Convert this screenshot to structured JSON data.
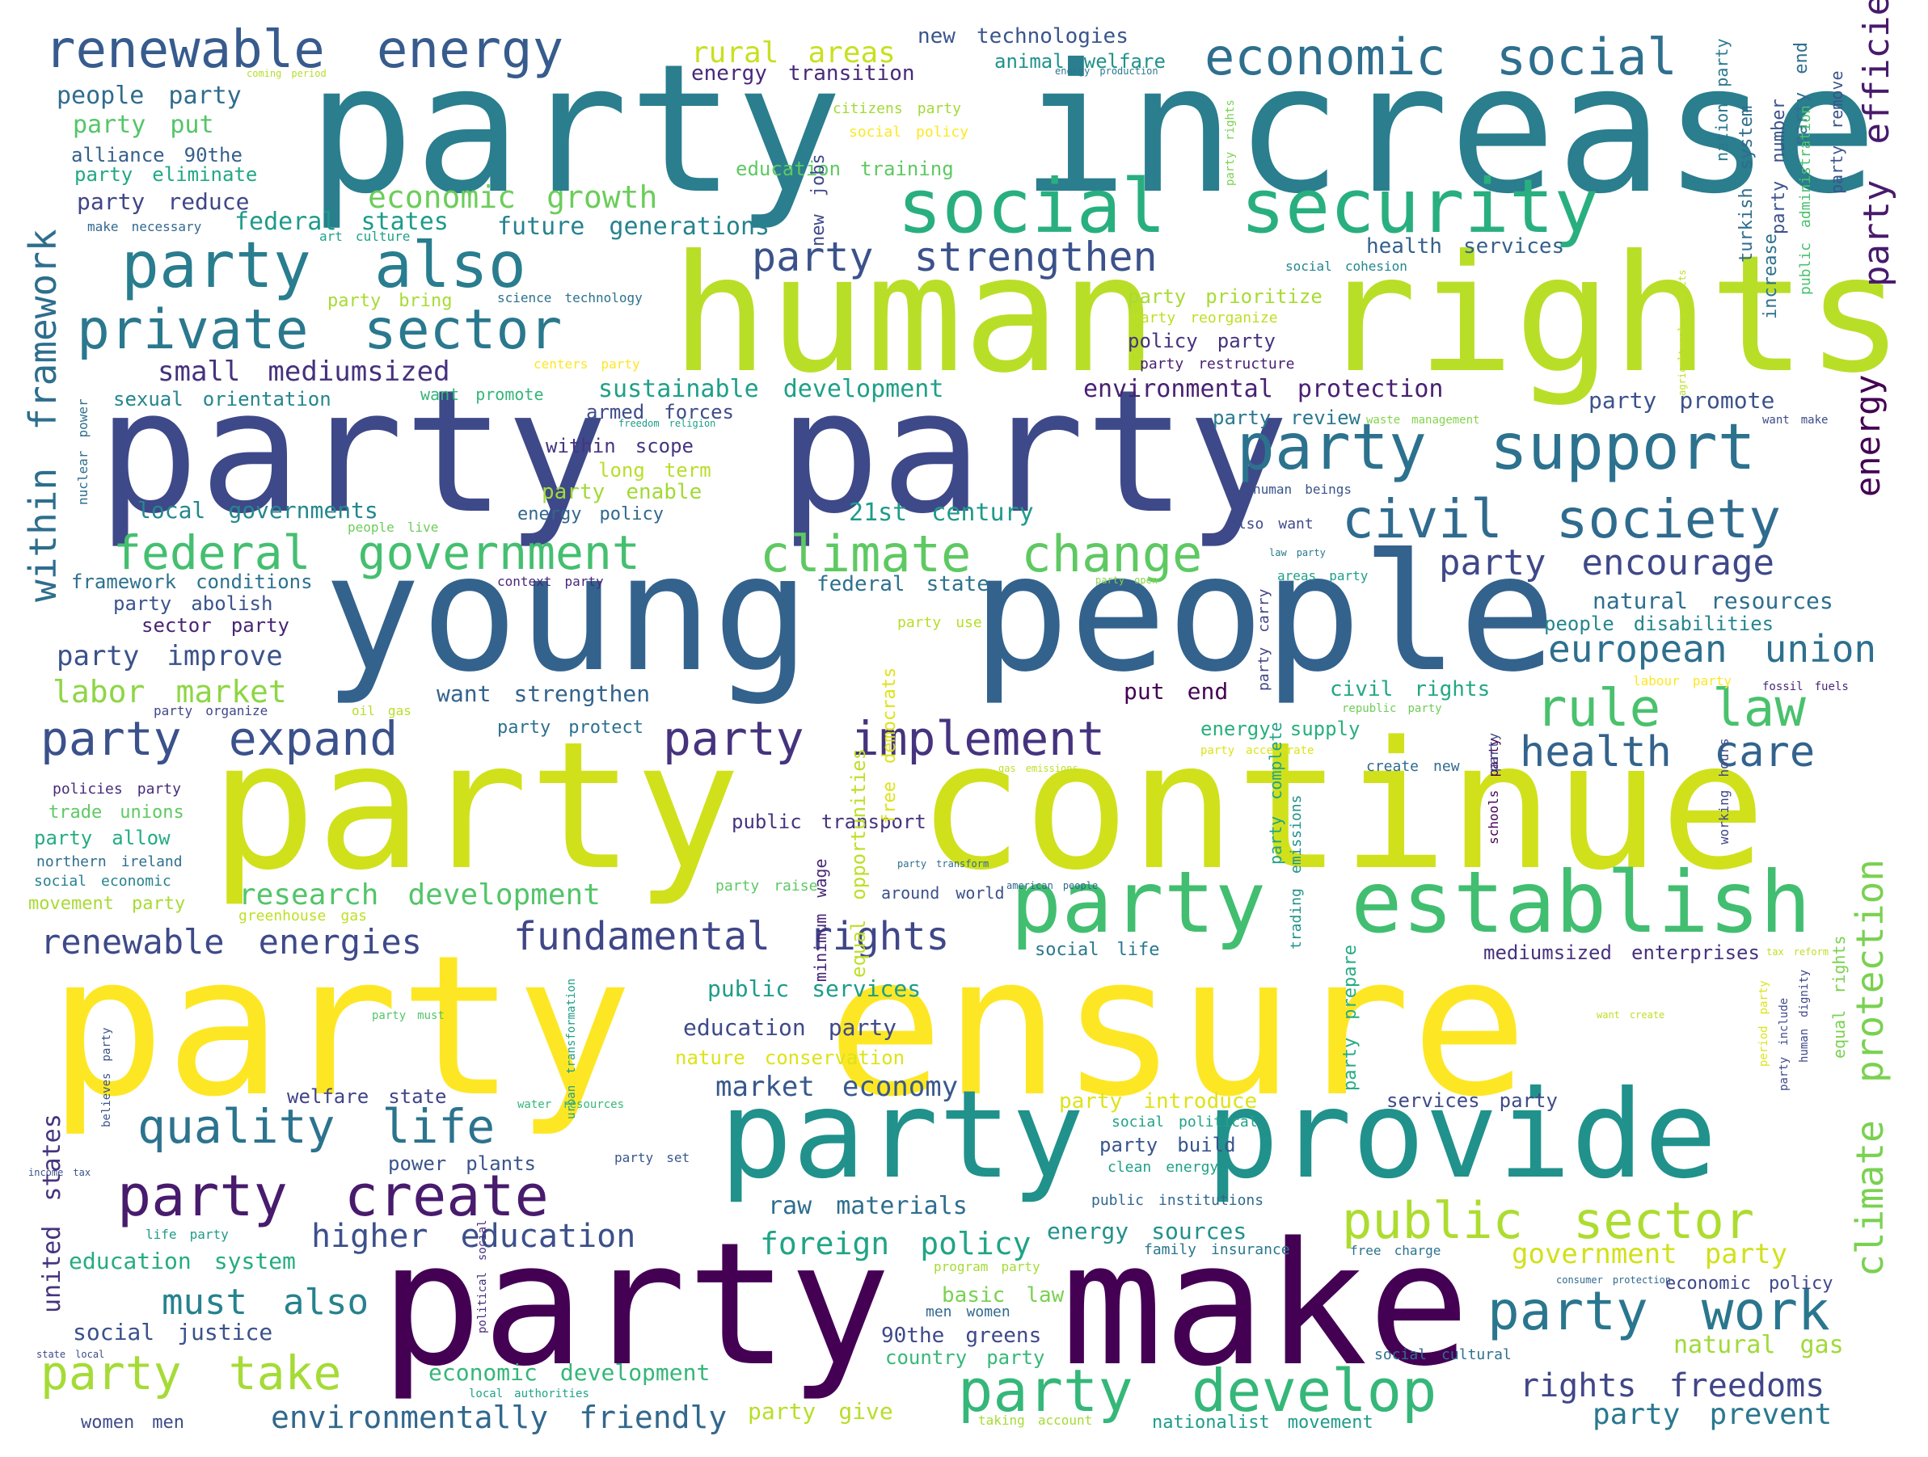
{
  "words": [
    {
      "text": "party increase",
      "color": "#2a7e8e"
    },
    {
      "text": "human rights",
      "color": "#b9de28"
    },
    {
      "text": "party party",
      "color": "#3e4989"
    },
    {
      "text": "young people",
      "color": "#33628d"
    },
    {
      "text": "party continue",
      "color": "#d0e11c"
    },
    {
      "text": "party ensure",
      "color": "#fde725"
    },
    {
      "text": "party make",
      "color": "#440154"
    },
    {
      "text": "party provide",
      "color": "#21918c"
    },
    {
      "text": "party establish",
      "color": "#42be71"
    },
    {
      "text": "social security",
      "color": "#29af7f"
    },
    {
      "text": "party also",
      "color": "#287d8e"
    },
    {
      "text": "private sector",
      "color": "#2a788e"
    },
    {
      "text": "renewable energy",
      "color": "#375b8d"
    },
    {
      "text": "economic social",
      "color": "#2e6f8e"
    },
    {
      "text": "party support",
      "color": "#2c728e"
    },
    {
      "text": "civil society",
      "color": "#2f6b8e"
    },
    {
      "text": "federal government",
      "color": "#44bf70"
    },
    {
      "text": "climate change",
      "color": "#5ec962"
    },
    {
      "text": "party strengthen",
      "color": "#3b528b"
    },
    {
      "text": "party create",
      "color": "#481b6d"
    },
    {
      "text": "quality life",
      "color": "#2c738e"
    },
    {
      "text": "party develop",
      "color": "#35b779"
    },
    {
      "text": "party work",
      "color": "#2a768e"
    },
    {
      "text": "public sector",
      "color": "#addc30"
    },
    {
      "text": "rule law",
      "color": "#4ac16d"
    },
    {
      "text": "party expand",
      "color": "#3b518b"
    },
    {
      "text": "party implement",
      "color": "#46337e"
    },
    {
      "text": "health care",
      "color": "#33638d"
    },
    {
      "text": "european union",
      "color": "#2d708e"
    },
    {
      "text": "party encourage",
      "color": "#3f4889"
    },
    {
      "text": "party take",
      "color": "#a5db36"
    },
    {
      "text": "rights freedoms",
      "color": "#404688"
    },
    {
      "text": "fundamental rights",
      "color": "#3f4788"
    },
    {
      "text": "renewable energies",
      "color": "#3e4a89"
    },
    {
      "text": "higher education",
      "color": "#3c508b"
    },
    {
      "text": "must also",
      "color": "#26828e"
    },
    {
      "text": "environmentally friendly",
      "color": "#31688e"
    },
    {
      "text": "foreign policy",
      "color": "#20a486"
    },
    {
      "text": "research development",
      "color": "#52c569"
    },
    {
      "text": "labor market",
      "color": "#8ed645"
    },
    {
      "text": "party improve",
      "color": "#3b528b"
    },
    {
      "text": "small mediumsized",
      "color": "#46317e"
    },
    {
      "text": "sustainable development",
      "color": "#1fa088"
    },
    {
      "text": "environmental protection",
      "color": "#482173"
    },
    {
      "text": "economic growth",
      "color": "#6ccd5a"
    },
    {
      "text": "federal states",
      "color": "#1e9b8a"
    },
    {
      "text": "future generations",
      "color": "#25838e"
    },
    {
      "text": "rural areas",
      "color": "#c8e020"
    },
    {
      "text": "energy transition",
      "color": "#482979"
    },
    {
      "text": "new technologies",
      "color": "#39568c"
    },
    {
      "text": "animal welfare",
      "color": "#20928c"
    },
    {
      "text": "people party",
      "color": "#2f6c8e"
    },
    {
      "text": "party put",
      "color": "#54c568"
    },
    {
      "text": "alliance 90the",
      "color": "#355f8d"
    },
    {
      "text": "party eliminate",
      "color": "#22a884"
    },
    {
      "text": "party reduce",
      "color": "#404688"
    },
    {
      "text": "make necessary",
      "color": "#31688e"
    },
    {
      "text": "art culture",
      "color": "#1fa088"
    },
    {
      "text": "party bring",
      "color": "#a8db34"
    },
    {
      "text": "science technology",
      "color": "#2c718e"
    },
    {
      "text": "centers party",
      "color": "#fde725"
    },
    {
      "text": "sexual orientation",
      "color": "#24868e"
    },
    {
      "text": "want promote",
      "color": "#34b679"
    },
    {
      "text": "armed forces",
      "color": "#3e4c8a"
    },
    {
      "text": "within scope",
      "color": "#453581"
    },
    {
      "text": "long term",
      "color": "#b8de29"
    },
    {
      "text": "party enable",
      "color": "#a2da37"
    },
    {
      "text": "energy policy",
      "color": "#31688e"
    },
    {
      "text": "21st century",
      "color": "#1f9a8a"
    },
    {
      "text": "local governments",
      "color": "#24878e"
    },
    {
      "text": "framework conditions",
      "color": "#2d718e"
    },
    {
      "text": "party abolish",
      "color": "#3a548c"
    },
    {
      "text": "sector party",
      "color": "#482475"
    },
    {
      "text": "party organize",
      "color": "#3f4889"
    },
    {
      "text": "oil gas",
      "color": "#b8de29"
    },
    {
      "text": "party protect",
      "color": "#2d708e"
    },
    {
      "text": "want strengthen",
      "color": "#33638d"
    },
    {
      "text": "put end",
      "color": "#440154"
    },
    {
      "text": "civil rights",
      "color": "#22a785"
    },
    {
      "text": "energy supply",
      "color": "#29af7f"
    },
    {
      "text": "create new",
      "color": "#306a8e"
    },
    {
      "text": "party accelerate",
      "color": "#dde318"
    },
    {
      "text": "republic party",
      "color": "#6ece58"
    },
    {
      "text": "labour party",
      "color": "#fde725"
    },
    {
      "text": "fossil fuels",
      "color": "#482878"
    },
    {
      "text": "natural resources",
      "color": "#2e6e8e"
    },
    {
      "text": "people disabilities",
      "color": "#25858e"
    },
    {
      "text": "party use",
      "color": "#b5de2b"
    },
    {
      "text": "federal state",
      "color": "#2c728e"
    },
    {
      "text": "areas party",
      "color": "#1f9f88"
    },
    {
      "text": "also want",
      "color": "#3e4989"
    },
    {
      "text": "party open",
      "color": "#86d549"
    },
    {
      "text": "law party",
      "color": "#2a788e"
    },
    {
      "text": "context party",
      "color": "#482878"
    },
    {
      "text": "people live",
      "color": "#6ccd5a"
    },
    {
      "text": "human beings",
      "color": "#3a548c"
    },
    {
      "text": "party review",
      "color": "#2a788e"
    },
    {
      "text": "waste management",
      "color": "#84d44b"
    },
    {
      "text": "want make",
      "color": "#3e4a89"
    },
    {
      "text": "party promote",
      "color": "#3b528b"
    },
    {
      "text": "freedom religion",
      "color": "#1f9e89"
    },
    {
      "text": "party prioritize",
      "color": "#a8db34"
    },
    {
      "text": "party reorganize",
      "color": "#bddf26"
    },
    {
      "text": "policy party",
      "color": "#46327e"
    },
    {
      "text": "party restructure",
      "color": "#482173"
    },
    {
      "text": "health services",
      "color": "#35608d"
    },
    {
      "text": "social cohesion",
      "color": "#24878e"
    },
    {
      "text": "citizens party",
      "color": "#a2da37"
    },
    {
      "text": "social policy",
      "color": "#fde725"
    },
    {
      "text": "education training",
      "color": "#5ec962"
    },
    {
      "text": "energy production",
      "color": "#2a788e"
    },
    {
      "text": "coming period",
      "color": "#b5de2b"
    },
    {
      "text": "public transport",
      "color": "#463480"
    },
    {
      "text": "party raise",
      "color": "#5ec962"
    },
    {
      "text": "around world",
      "color": "#3b518b"
    },
    {
      "text": "american people",
      "color": "#31688e"
    },
    {
      "text": "party transform",
      "color": "#2e6e8e"
    },
    {
      "text": "greenhouse gas",
      "color": "#bddf26"
    },
    {
      "text": "trade unions",
      "color": "#5ec962"
    },
    {
      "text": "party allow",
      "color": "#25ac82"
    },
    {
      "text": "northern ireland",
      "color": "#2e6f8e"
    },
    {
      "text": "social economic",
      "color": "#26828e"
    },
    {
      "text": "movement party",
      "color": "#a8db34"
    },
    {
      "text": "policies party",
      "color": "#472c7a"
    },
    {
      "text": "public services",
      "color": "#1e9c89"
    },
    {
      "text": "education party",
      "color": "#3e4a89"
    },
    {
      "text": "nature conservation",
      "color": "#dde318"
    },
    {
      "text": "market economy",
      "color": "#38598c"
    },
    {
      "text": "welfare state",
      "color": "#414487"
    },
    {
      "text": "water resources",
      "color": "#35b779"
    },
    {
      "text": "party set",
      "color": "#39568c"
    },
    {
      "text": "power plants",
      "color": "#3a548c"
    },
    {
      "text": "raw materials",
      "color": "#2e6e8e"
    },
    {
      "text": "party introduce",
      "color": "#dde318"
    },
    {
      "text": "social political",
      "color": "#20a386"
    },
    {
      "text": "party build",
      "color": "#39568c"
    },
    {
      "text": "clean energy",
      "color": "#1fa188"
    },
    {
      "text": "public institutions",
      "color": "#31688e"
    },
    {
      "text": "services party",
      "color": "#3e4a89"
    },
    {
      "text": "family insurance",
      "color": "#2a778e"
    },
    {
      "text": "free charge",
      "color": "#2c738e"
    },
    {
      "text": "program party",
      "color": "#a5db36"
    },
    {
      "text": "basic law",
      "color": "#7ad151"
    },
    {
      "text": "men women",
      "color": "#306a8e"
    },
    {
      "text": "90the greens",
      "color": "#3e4989"
    },
    {
      "text": "country party",
      "color": "#37b878"
    },
    {
      "text": "social cultural",
      "color": "#2d708e"
    },
    {
      "text": "economic policy",
      "color": "#3f4889"
    },
    {
      "text": "natural gas",
      "color": "#a0da39"
    },
    {
      "text": "consumer protection",
      "color": "#31688e"
    },
    {
      "text": "government party",
      "color": "#d0e11c"
    },
    {
      "text": "mediumsized enterprises",
      "color": "#46327e"
    },
    {
      "text": "tax reform",
      "color": "#bddf26"
    },
    {
      "text": "social life",
      "color": "#2a788e"
    },
    {
      "text": "energy sources",
      "color": "#21918c"
    },
    {
      "text": "economic development",
      "color": "#35b779"
    },
    {
      "text": "local authorities",
      "color": "#20a386"
    },
    {
      "text": "social justice",
      "color": "#3b528b"
    },
    {
      "text": "education system",
      "color": "#25ac82"
    },
    {
      "text": "party give",
      "color": "#b8de29"
    },
    {
      "text": "taking account",
      "color": "#a5db36"
    },
    {
      "text": "nationalist movement",
      "color": "#1e9c89"
    },
    {
      "text": "party prevent",
      "color": "#2a788e"
    },
    {
      "text": "women men",
      "color": "#3e4c8a"
    },
    {
      "text": "state local",
      "color": "#3e4a89"
    },
    {
      "text": "income tax",
      "color": "#3b528b"
    },
    {
      "text": "party must",
      "color": "#54c568"
    },
    {
      "text": "want create",
      "color": "#bddf26"
    },
    {
      "text": "life party",
      "color": "#1e9c89"
    },
    {
      "text": "party efficiency",
      "color": "#481a6c"
    },
    {
      "text": "energy",
      "color": "#440154"
    },
    {
      "text": "within framework",
      "color": "#2e6e8e"
    },
    {
      "text": "climate protection",
      "color": "#7ad151"
    },
    {
      "text": "united states",
      "color": "#46337e"
    },
    {
      "text": "equal opportunities",
      "color": "#bddf26"
    },
    {
      "text": "free democrats",
      "color": "#dde318"
    },
    {
      "text": "minimum wage",
      "color": "#482677"
    },
    {
      "text": "party prepare",
      "color": "#25ac82"
    },
    {
      "text": "new jobs",
      "color": "#3e4a89"
    },
    {
      "text": "party complete",
      "color": "#20a386"
    },
    {
      "text": "party carry",
      "color": "#414487"
    },
    {
      "text": "trading emissions",
      "color": "#21918c"
    },
    {
      "text": "turkish system",
      "color": "#2f6c8e"
    },
    {
      "text": "party number",
      "color": "#3b528b"
    },
    {
      "text": "nation party",
      "color": "#2a788e"
    },
    {
      "text": "party end",
      "color": "#2e6f8e"
    },
    {
      "text": "party remove",
      "color": "#3a548c"
    },
    {
      "text": "public administration",
      "color": "#4ac16d"
    },
    {
      "text": "agricultural products",
      "color": "#bddf26"
    },
    {
      "text": "increase",
      "color": "#2c718e"
    },
    {
      "text": "schools party",
      "color": "#440154"
    },
    {
      "text": "working hours",
      "color": "#3f4889"
    },
    {
      "text": "urban transformation",
      "color": "#1f9e89"
    },
    {
      "text": "nuclear power",
      "color": "#2e6f8e"
    },
    {
      "text": "human dignity",
      "color": "#3e4989"
    },
    {
      "text": "equal rights",
      "color": "#7ad151"
    },
    {
      "text": "period party",
      "color": "#dde318"
    },
    {
      "text": "party include",
      "color": "#3e4a89"
    },
    {
      "text": "believes party",
      "color": "#3b528b"
    },
    {
      "text": "political social",
      "color": "#472d7b"
    },
    {
      "text": "party rights",
      "color": "#7ad151"
    },
    {
      "text": "gas emissions",
      "color": "#bddf26"
    },
    {
      "text": "party",
      "color": "#3e4989"
    }
  ]
}
